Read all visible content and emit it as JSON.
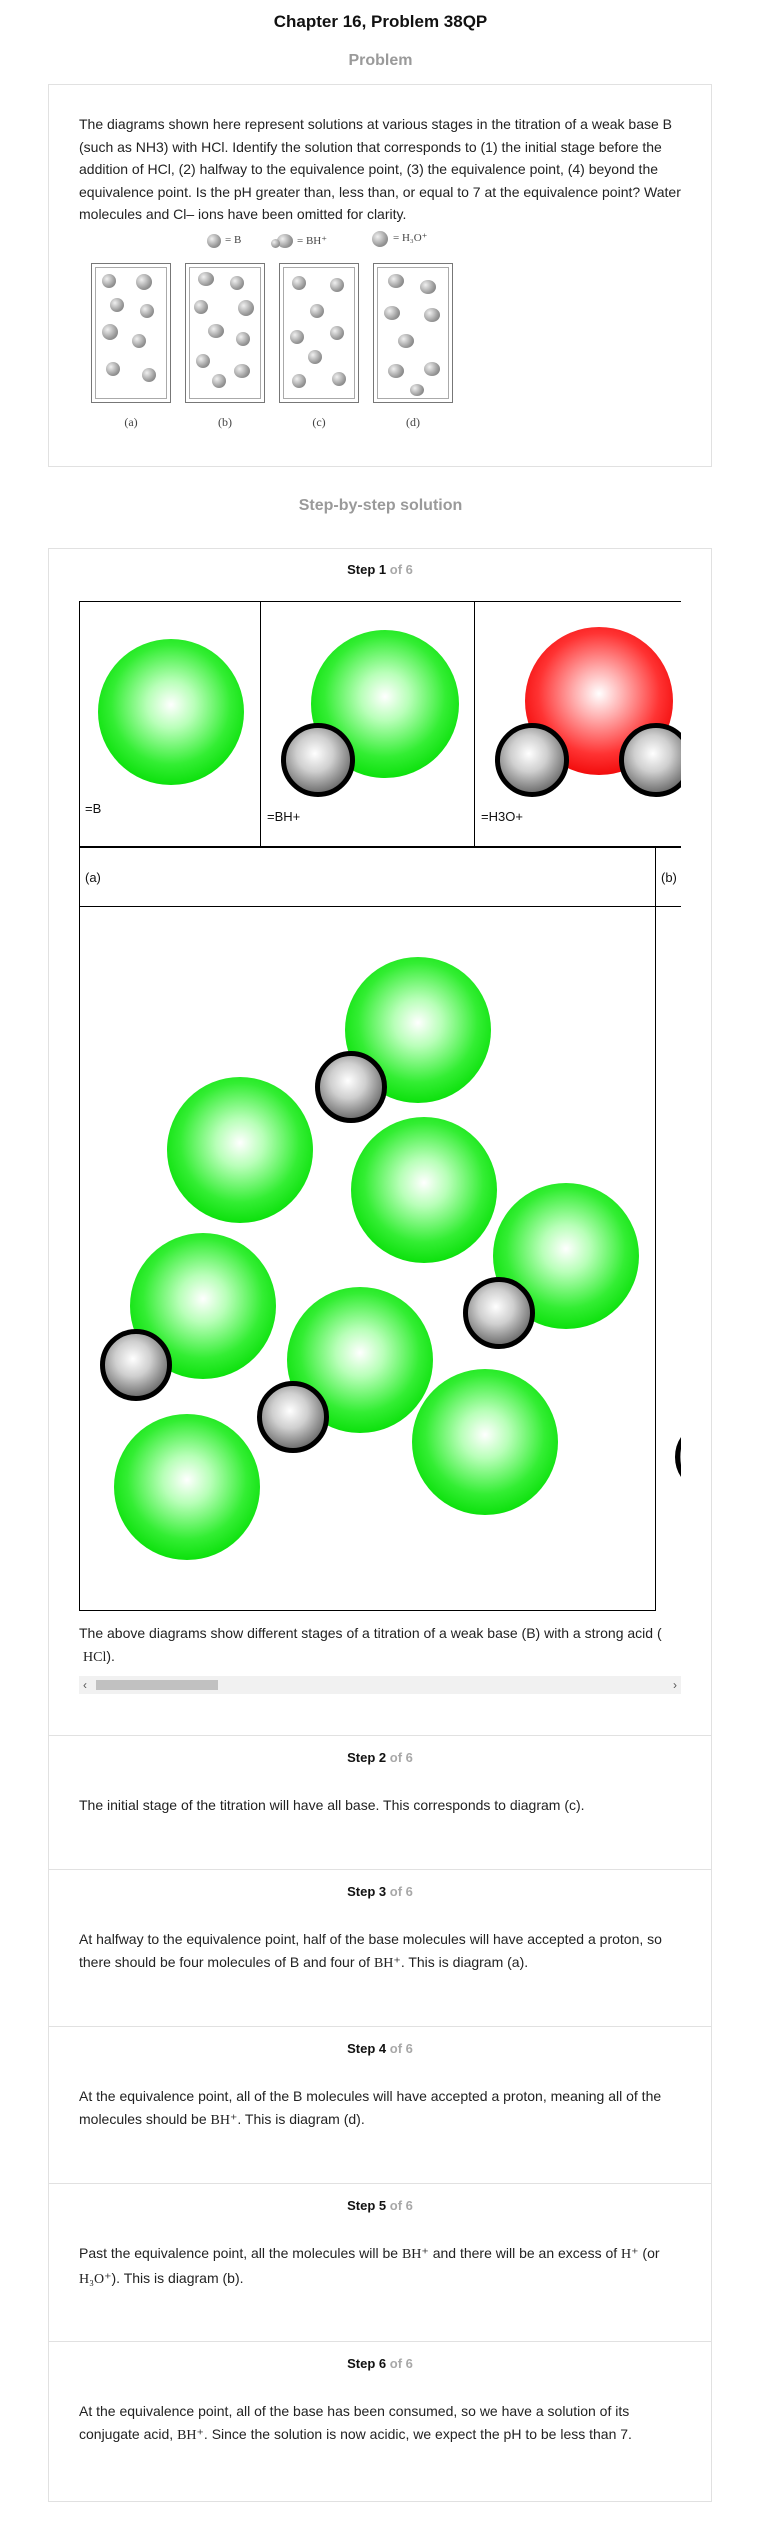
{
  "header": {
    "title": "Chapter 16, Problem 38QP"
  },
  "problem": {
    "heading": "Problem",
    "text": "The diagrams shown here represent solutions at various stages in the titration of a weak base B (such as NH3) with HCl. Identify the solution that corresponds to (1) the initial stage before the addition of HCl, (2) halfway to the equivalence point, (3) the equivalence point, (4) beyond the equivalence point. Is the pH greater than, less than, or equal to 7 at the equivalence point? Water molecules and Cl– ions have been omitted for clarity.",
    "legend": {
      "b": "= B",
      "bh": "= BH⁺",
      "h3o": "= H₃O⁺"
    },
    "beaker_labels": [
      "(a)",
      "(b)",
      "(c)",
      "(d)"
    ]
  },
  "solution": {
    "heading": "Step-by-step solution"
  },
  "steps": {
    "of_label": "of 6",
    "s1": {
      "word": "Step",
      "num": "1",
      "legend_b": "=B",
      "legend_bh": "=BH+",
      "legend_h3o": "=H3O+",
      "panel_a": "(a)",
      "panel_b": "(b)",
      "caption": "The above diagrams show different stages of a titration of a weak base (B) with a strong acid (",
      "caption_chem": "HCl",
      "caption_end": ")."
    },
    "s2": {
      "word": "Step",
      "num": "2",
      "text": "The initial stage of the titration will have all base. This corresponds to diagram (c)."
    },
    "s3": {
      "word": "Step",
      "num": "3",
      "text_a": "At halfway to the equivalence point, half of the base molecules will have accepted a proton, so there should be four molecules of B and four of ",
      "chem": "BH⁺",
      "text_b": ". This is diagram (a)."
    },
    "s4": {
      "word": "Step",
      "num": "4",
      "text_a": "At the equivalence point, all of the B molecules will have accepted a proton, meaning all of the molecules should be ",
      "chem": "BH⁺",
      "text_b": ". This is diagram (d)."
    },
    "s5": {
      "word": "Step",
      "num": "5",
      "text_a": "Past the equivalence point, all the molecules will be ",
      "chem1": "BH⁺",
      "text_b": " and there will be an excess of ",
      "chem2": "H⁺",
      "text_c": " (or ",
      "chem3": "H₃O⁺",
      "text_d": "). This is diagram (b)."
    },
    "s6": {
      "word": "Step",
      "num": "6",
      "text_a": "At the equivalence point, all of the base has been consumed, so we have a solution of its conjugate acid, ",
      "chem": "BH⁺",
      "text_b": ". Since the solution is now acidic, we expect the pH to be less than 7."
    }
  },
  "colors": {
    "base_green": "#00dd00",
    "acid_red": "#ee0000",
    "proton_grey": "#6f6f6f",
    "muted_heading": "#9a9a9a"
  }
}
